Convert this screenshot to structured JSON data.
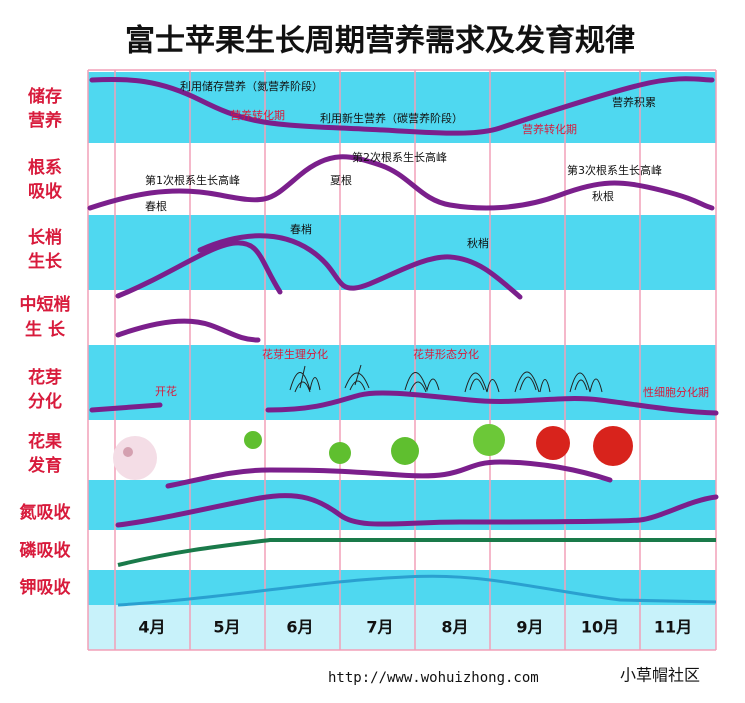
{
  "title": "富士苹果生长周期营养需求及发育规律",
  "rows": [
    {
      "label": [
        "储存",
        "营养"
      ]
    },
    {
      "label": [
        "根系",
        "吸收"
      ]
    },
    {
      "label": [
        "长梢",
        "生长"
      ]
    },
    {
      "label": [
        "中短梢",
        "生 长"
      ]
    },
    {
      "label": [
        "花芽",
        "分化"
      ]
    },
    {
      "label": [
        "花果",
        "发育"
      ]
    },
    {
      "label": [
        "氮吸收"
      ]
    },
    {
      "label": [
        "磷吸收"
      ]
    },
    {
      "label": [
        "钾吸收"
      ]
    }
  ],
  "months": [
    "4月",
    "5月",
    "6月",
    "7月",
    "8月",
    "9月",
    "10月",
    "11月"
  ],
  "annotations": [
    "利用储存营养（氮营养阶段）",
    "营养转化期",
    "利用新生营养（碳营养阶段）",
    "营养转化期",
    "营养积累",
    "第1次根系生长高峰",
    "春根",
    "第2次根系生长高峰",
    "夏根",
    "第3次根系生长高峰",
    "秋根",
    "春梢",
    "秋梢",
    "开花",
    "花芽生理分化",
    "花芽形态分化",
    "性细胞分化期"
  ],
  "footer": {
    "url": "http://www.wohuizhong.com",
    "brand": "小草帽社区"
  }
}
